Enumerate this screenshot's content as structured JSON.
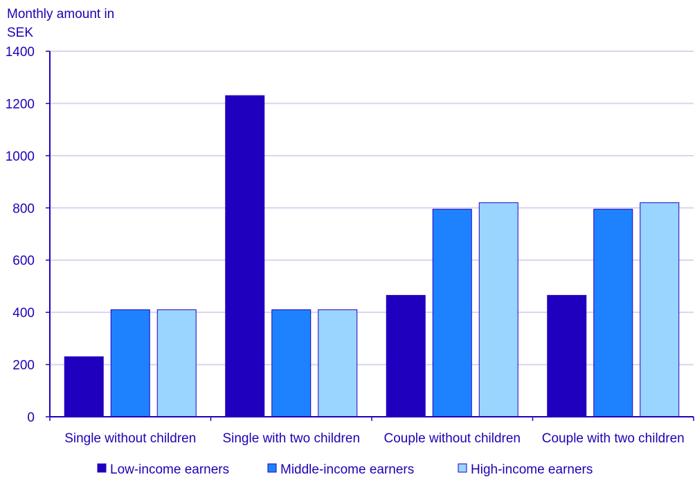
{
  "chart_data": {
    "type": "bar",
    "title": "",
    "ylabel": "Monthly amount in SEK",
    "ylabel_lines": [
      "Monthly amount in",
      "SEK"
    ],
    "xlabel": "",
    "ylim": [
      0,
      1400
    ],
    "yticks": [
      0,
      200,
      400,
      600,
      800,
      1000,
      1200,
      1400
    ],
    "grid": true,
    "legend_position": "bottom",
    "categories": [
      "Single without children",
      "Single with two children",
      "Couple without children",
      "Couple with two children"
    ],
    "series": [
      {
        "name": "Low-income earners",
        "color": "#1f00bf",
        "values": [
          230,
          1230,
          465,
          465
        ]
      },
      {
        "name": "Middle-income earners",
        "color": "#1e82ff",
        "values": [
          410,
          410,
          795,
          795
        ]
      },
      {
        "name": "High-income earners",
        "color": "#99d5ff",
        "values": [
          410,
          410,
          820,
          820
        ]
      }
    ],
    "colors": {
      "text": "#1e00b4",
      "axis": "#1f00c0",
      "grid": "#d8d4f0",
      "bar_outline": "#1f00c0"
    }
  }
}
